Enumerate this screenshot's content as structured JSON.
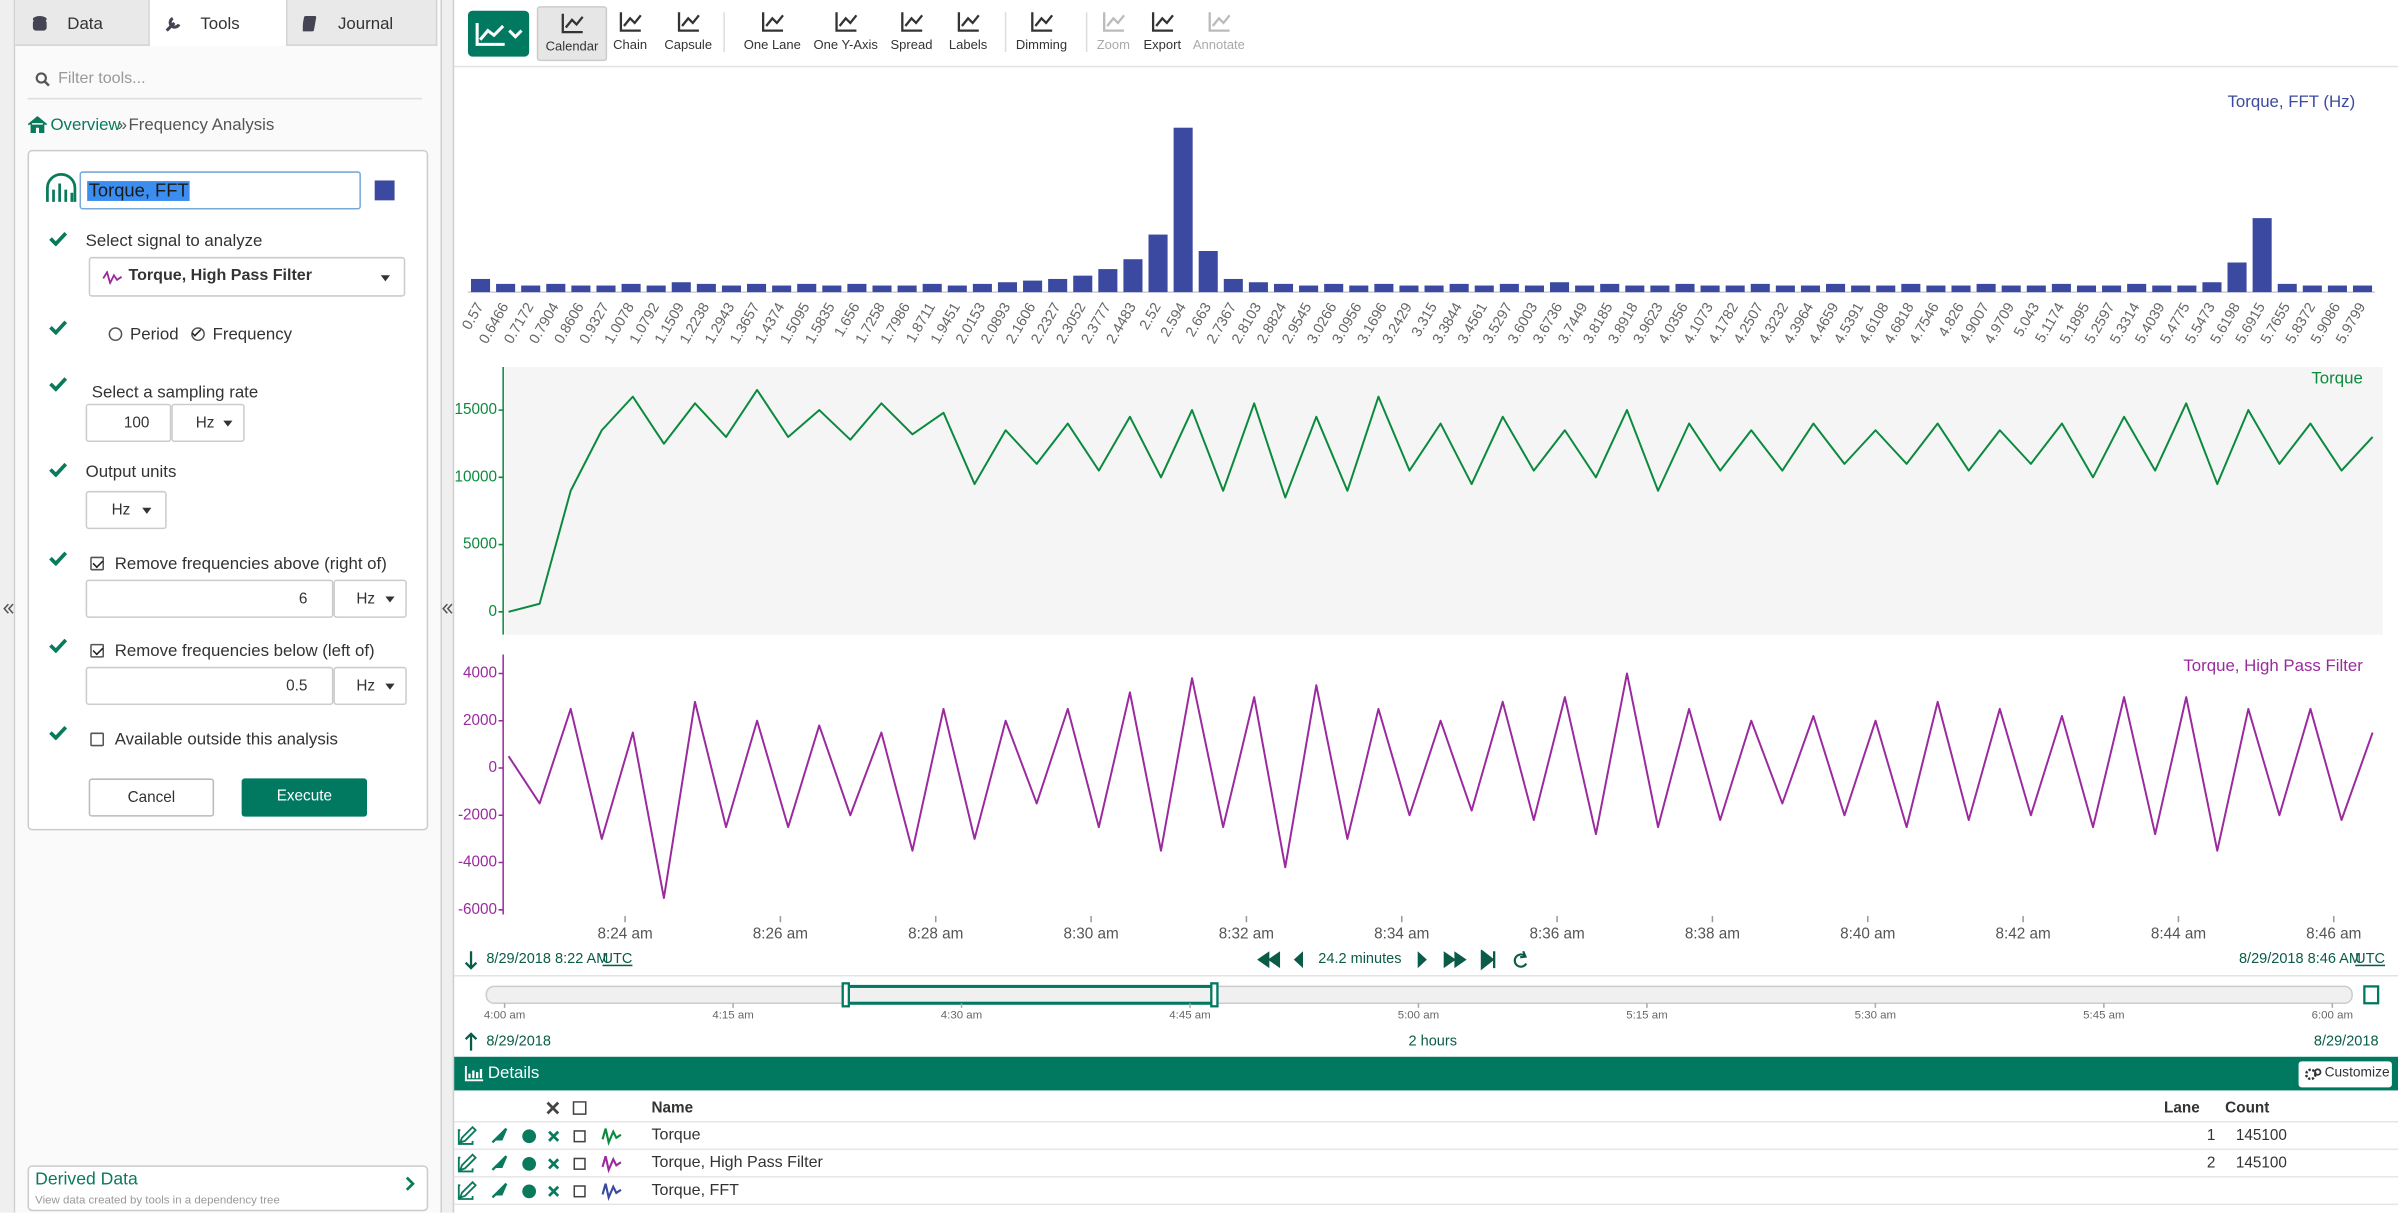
{
  "tabs": [
    "Data",
    "Tools",
    "Journal"
  ],
  "tools": {
    "filter_placeholder": "Filter tools...",
    "breadcrumb": [
      "Overview",
      "»",
      "Frequency Analysis"
    ],
    "form": {
      "name": "Torque, FFT",
      "color": "#3b4aa0",
      "signal_prompt": "Select signal to analyze",
      "signal": "Torque, High Pass Filter",
      "mode_options": [
        "Period",
        "Frequency"
      ],
      "mode": "Frequency",
      "rate_prompt": "Select a sampling rate",
      "rate": 100,
      "rate_unit": "Hz",
      "output_prompt": "Output units",
      "output_unit": "Hz",
      "above": {
        "checked": true,
        "label": "Remove frequencies above (right of)",
        "value": 6,
        "unit": "Hz"
      },
      "below": {
        "checked": true,
        "label": "Remove frequencies below (left of)",
        "value": 0.5,
        "unit": "Hz"
      },
      "outside": {
        "checked": false,
        "label": "Available outside this analysis"
      },
      "cancel": "Cancel",
      "execute": "Execute"
    },
    "derived_data": {
      "title": "Derived Data",
      "subtitle": "View data created by tools in a dependency tree"
    }
  },
  "toolbar": [
    {
      "label": "Calendar",
      "enabled": true,
      "pressed": true
    },
    {
      "label": "Chain",
      "enabled": true
    },
    {
      "label": "Capsule",
      "enabled": true
    },
    {
      "label": "One Lane",
      "enabled": true
    },
    {
      "label": "One Y-Axis",
      "enabled": true
    },
    {
      "label": "Spread",
      "enabled": true
    },
    {
      "label": "Labels",
      "enabled": true
    },
    {
      "label": "Dimming",
      "enabled": true
    },
    {
      "label": "Zoom",
      "enabled": false
    },
    {
      "label": "Export",
      "enabled": true
    },
    {
      "label": "Annotate",
      "enabled": false
    }
  ],
  "chart_data": [
    {
      "type": "bar",
      "title": "Torque, FFT (Hz)",
      "color": "#3b4aa0",
      "categories": [
        "0.57",
        "0.6466",
        "0.7172",
        "0.7904",
        "0.8606",
        "0.9327",
        "1.0078",
        "1.0792",
        "1.1509",
        "1.2238",
        "1.2943",
        "1.3657",
        "1.4374",
        "1.5095",
        "1.5835",
        "1.656",
        "1.7258",
        "1.7986",
        "1.8711",
        "1.9451",
        "2.0153",
        "2.0893",
        "2.1606",
        "2.2327",
        "2.3052",
        "2.3777",
        "2.4483",
        "2.52",
        "2.594",
        "2.663",
        "2.7367",
        "2.8103",
        "2.8824",
        "2.9545",
        "3.0266",
        "3.0956",
        "3.1696",
        "3.2429",
        "3.315",
        "3.3844",
        "3.4561",
        "3.5297",
        "3.6003",
        "3.6736",
        "3.7449",
        "3.8185",
        "3.8918",
        "3.9623",
        "4.0356",
        "4.1073",
        "4.1782",
        "4.2507",
        "4.3232",
        "4.3964",
        "4.4659",
        "4.5391",
        "4.6108",
        "4.6818",
        "4.7546",
        "4.826",
        "4.9007",
        "4.9709",
        "5.043",
        "5.1174",
        "5.1895",
        "5.2597",
        "5.3314",
        "5.4039",
        "5.4775",
        "5.5473",
        "5.6198",
        "5.6915",
        "5.7655",
        "5.8372",
        "5.9086",
        "5.9799"
      ],
      "values": [
        8,
        5,
        4,
        5,
        4,
        4,
        5,
        4,
        6,
        5,
        4,
        5,
        4,
        5,
        4,
        5,
        4,
        4,
        5,
        4,
        5,
        6,
        7,
        8,
        10,
        14,
        20,
        35,
        100,
        25,
        8,
        6,
        5,
        4,
        5,
        4,
        5,
        4,
        4,
        5,
        4,
        5,
        4,
        6,
        4,
        5,
        4,
        4,
        5,
        4,
        4,
        5,
        4,
        4,
        5,
        4,
        4,
        5,
        4,
        4,
        5,
        4,
        4,
        5,
        4,
        4,
        5,
        4,
        4,
        6,
        18,
        45,
        5,
        4,
        4,
        4
      ],
      "ylim": [
        0,
        120
      ]
    },
    {
      "type": "line",
      "x": [
        502.5,
        502.9,
        503.3,
        503.7,
        504.1,
        504.5,
        504.9,
        505.3,
        505.7,
        506.1,
        506.5,
        506.9,
        507.3,
        507.7,
        508.1,
        508.5,
        508.9,
        509.3,
        509.7,
        510.1,
        510.5,
        510.9,
        511.3,
        511.7,
        512.1,
        512.5,
        512.9,
        513.3,
        513.7,
        514.1,
        514.5,
        514.9,
        515.3,
        515.7,
        516.1,
        516.5,
        516.9,
        517.3,
        517.7,
        518.1,
        518.5,
        518.9,
        519.3,
        519.7,
        520.1,
        520.5,
        520.9,
        521.3,
        521.7,
        522.1,
        522.5,
        522.9,
        523.3,
        523.7,
        524.1,
        524.5,
        524.9,
        525.3,
        525.7,
        526.1,
        526.5
      ],
      "xlim": [
        502.45,
        526.63
      ],
      "xticks": [
        {
          "value": 504,
          "label": "8:24 am"
        },
        {
          "value": 506,
          "label": "8:26 am"
        },
        {
          "value": 508,
          "label": "8:28 am"
        },
        {
          "value": 510,
          "label": "8:30 am"
        },
        {
          "value": 512,
          "label": "8:32 am"
        },
        {
          "value": 514,
          "label": "8:34 am"
        },
        {
          "value": 516,
          "label": "8:36 am"
        },
        {
          "value": 518,
          "label": "8:38 am"
        },
        {
          "value": 520,
          "label": "8:40 am"
        },
        {
          "value": 522,
          "label": "8:42 am"
        },
        {
          "value": 524,
          "label": "8:44 am"
        },
        {
          "value": 526,
          "label": "8:46 am"
        }
      ],
      "series": [
        {
          "name": "Torque",
          "color": "#0b8a3e",
          "ylim": [
            -1700,
            18200
          ],
          "yticks": [
            0,
            5000,
            10000,
            15000
          ],
          "values": [
            0,
            600,
            9000,
            13500,
            16000,
            12500,
            15500,
            13000,
            16500,
            13000,
            15000,
            12800,
            15500,
            13200,
            14800,
            9500,
            13500,
            11000,
            14000,
            10500,
            14500,
            10000,
            15000,
            9000,
            15500,
            8500,
            14500,
            9000,
            16000,
            10500,
            14000,
            9500,
            14500,
            10500,
            13500,
            10000,
            15000,
            9000,
            14000,
            10500,
            13500,
            10500,
            14000,
            11000,
            13500,
            11000,
            14000,
            10500,
            13500,
            11000,
            14000,
            10000,
            14500,
            10500,
            15500,
            9500,
            15000,
            11000,
            14000,
            10500,
            13000
          ]
        },
        {
          "name": "Torque, High Pass Filter",
          "color": "#9b2a9e",
          "ylim": [
            -6200,
            4800
          ],
          "yticks": [
            -6000,
            -4000,
            -2000,
            0,
            2000,
            4000
          ],
          "values": [
            500,
            -1500,
            2500,
            -3000,
            1500,
            -5500,
            2800,
            -2500,
            2000,
            -2500,
            1800,
            -2000,
            1500,
            -3500,
            2500,
            -3000,
            2000,
            -1500,
            2500,
            -2500,
            3200,
            -3500,
            3800,
            -2500,
            3000,
            -4200,
            3500,
            -3000,
            2500,
            -2000,
            2000,
            -1800,
            2800,
            -2200,
            3000,
            -2800,
            4000,
            -2500,
            2500,
            -2200,
            2000,
            -1500,
            2200,
            -2000,
            2000,
            -2500,
            2800,
            -2200,
            2500,
            -2000,
            2200,
            -2500,
            3000,
            -2800,
            3000,
            -3500,
            2500,
            -2000,
            2500,
            -2200,
            1500
          ]
        }
      ]
    }
  ],
  "range": {
    "start": "8/29/2018 8:22 AM",
    "start_tz": "UTC",
    "duration": "24.2 minutes",
    "end": "8/29/2018 8:46 AM",
    "end_tz": "UTC"
  },
  "overview": {
    "xlim": [
      238.8,
      361.3
    ],
    "selection": [
      262.4,
      286.6
    ],
    "xticks": [
      {
        "value": 240,
        "label": "4:00 am"
      },
      {
        "value": 255,
        "label": "4:15 am"
      },
      {
        "value": 270,
        "label": "4:30 am"
      },
      {
        "value": 285,
        "label": "4:45 am"
      },
      {
        "value": 300,
        "label": "5:00 am"
      },
      {
        "value": 315,
        "label": "5:15 am"
      },
      {
        "value": 330,
        "label": "5:30 am"
      },
      {
        "value": 345,
        "label": "5:45 am"
      },
      {
        "value": 360,
        "label": "6:00 am"
      }
    ],
    "start": "8/29/2018",
    "duration": "2 hours",
    "end": "8/29/2018"
  },
  "details": {
    "title": "Details",
    "customize": "Customize",
    "columns": {
      "name": "Name",
      "lane": "Lane",
      "count": "Count"
    },
    "rows": [
      {
        "name": "Torque",
        "color": "#0b8a3e",
        "lane": 1,
        "count": 145100
      },
      {
        "name": "Torque, High Pass Filter",
        "color": "#9b2a9e",
        "lane": 2,
        "count": 145100
      },
      {
        "name": "Torque, FFT",
        "color": "#3b4aa0"
      }
    ]
  }
}
